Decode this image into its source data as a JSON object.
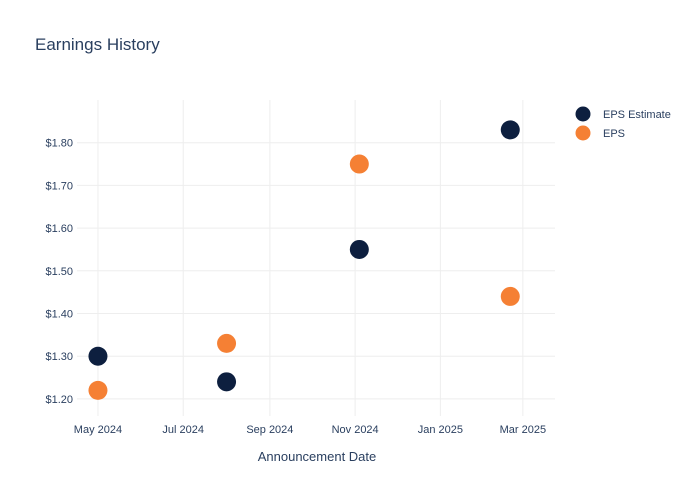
{
  "chart_data": {
    "type": "scatter",
    "title": "Earnings History",
    "xlabel": "Announcement Date",
    "ylabel": "",
    "x_ticks": [
      "May 2024",
      "Jul 2024",
      "Sep 2024",
      "Nov 2024",
      "Jan 2025",
      "Mar 2025"
    ],
    "y_ticks": [
      "$1.20",
      "$1.30",
      "$1.40",
      "$1.50",
      "$1.60",
      "$1.70",
      "$1.80"
    ],
    "ylim": [
      1.16,
      1.9
    ],
    "xlim": [
      "2024-04-16",
      "2025-03-24"
    ],
    "grid": true,
    "legend_position": "top-right",
    "series": [
      {
        "name": "EPS Estimate",
        "color": "#0d1f3f",
        "points": [
          {
            "x": "2024-05-01",
            "y": 1.3
          },
          {
            "x": "2024-08-01",
            "y": 1.24
          },
          {
            "x": "2024-11-04",
            "y": 1.55
          },
          {
            "x": "2025-02-20",
            "y": 1.83
          }
        ]
      },
      {
        "name": "EPS",
        "color": "#f58034",
        "points": [
          {
            "x": "2024-05-01",
            "y": 1.22
          },
          {
            "x": "2024-08-01",
            "y": 1.33
          },
          {
            "x": "2024-11-04",
            "y": 1.75
          },
          {
            "x": "2025-02-20",
            "y": 1.44
          }
        ]
      }
    ]
  }
}
